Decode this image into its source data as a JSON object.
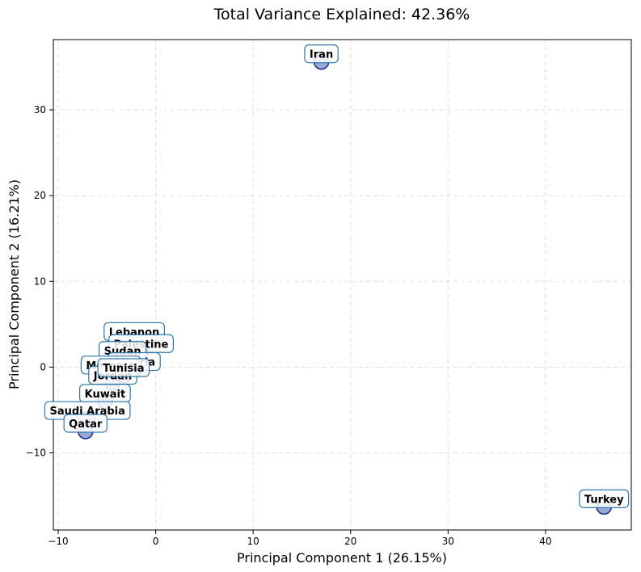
{
  "chart_data": {
    "type": "scatter",
    "title": "Total Variance Explained: 42.36%",
    "xlabel": "Principal Component 1 (26.15%)",
    "ylabel": "Principal Component 2 (16.21%)",
    "xlim": [
      -10.5,
      48.8
    ],
    "ylim": [
      -19,
      38.2
    ],
    "xticks": [
      -10,
      0,
      10,
      20,
      30,
      40
    ],
    "yticks": [
      -10,
      0,
      10,
      20,
      30
    ],
    "xtick_labels": [
      "−10",
      "0",
      "10",
      "20",
      "30",
      "40"
    ],
    "ytick_labels": [
      "−10",
      "0",
      "10",
      "20",
      "30"
    ],
    "grid": true,
    "points": [
      {
        "label": "Iran",
        "x": 17.0,
        "y": 35.6
      },
      {
        "label": "Turkey",
        "x": 46.0,
        "y": -16.3
      },
      {
        "label": "Lebanon",
        "x": -2.2,
        "y": 3.2
      },
      {
        "label": "Palestine",
        "x": -1.5,
        "y": 1.8
      },
      {
        "label": "Sudan",
        "x": -3.4,
        "y": 1.0
      },
      {
        "label": "Algeria",
        "x": -2.2,
        "y": -0.3
      },
      {
        "label": "Morocco",
        "x": -4.6,
        "y": -0.7
      },
      {
        "label": "Jordan",
        "x": -4.4,
        "y": -1.9
      },
      {
        "label": "Tunisia",
        "x": -3.3,
        "y": -1.0
      },
      {
        "label": "Kuwait",
        "x": -5.2,
        "y": -4.0
      },
      {
        "label": "Saudi Arabia",
        "x": -7.0,
        "y": -6.0
      },
      {
        "label": "Qatar",
        "x": -7.2,
        "y": -7.5
      }
    ],
    "point_color": "#7f94d1",
    "point_edge_color": "#23307f",
    "label_box_edge_color": "#2f78aa"
  }
}
